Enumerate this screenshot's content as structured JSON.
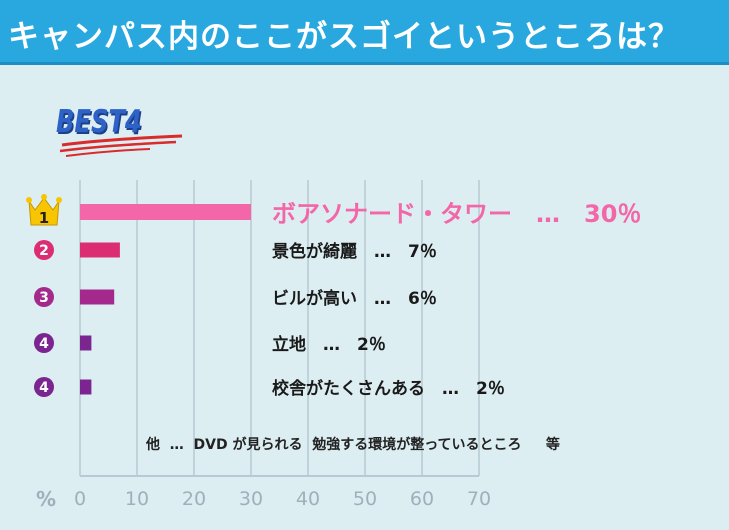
{
  "header": {
    "title": "キャンパス内のここがスゴイというところは？",
    "bg_color": "#29a8e0"
  },
  "badge": {
    "text": "BEST4"
  },
  "note": "他  …  DVD が見られる  勉強する環境が整っているところ     等",
  "chart_data": {
    "type": "bar",
    "orientation": "horizontal",
    "categories": [
      "ボアソナード・タワー",
      "景色が綺麗",
      "ビルが高い",
      "立地",
      "校舎がたくさんある"
    ],
    "values": [
      30,
      7,
      6,
      2,
      2
    ],
    "ranks": [
      "1",
      "2",
      "3",
      "4",
      "4"
    ],
    "labels": [
      "ボアソナード・タワー　…　30％",
      "景色が綺麗　…　7％",
      "ビルが高い　…　6％",
      "立地　…　2％",
      "校舎がたくさんある　…　2％"
    ],
    "bar_colors": [
      "#f366a8",
      "#dc2d72",
      "#a32a8c",
      "#7a2590",
      "#7a2590"
    ],
    "xlabel": "%",
    "xlim": [
      0,
      70
    ],
    "ticks": [
      "0",
      "10",
      "20",
      "30",
      "40",
      "50",
      "60",
      "70"
    ],
    "grid": true,
    "legend": "none"
  }
}
